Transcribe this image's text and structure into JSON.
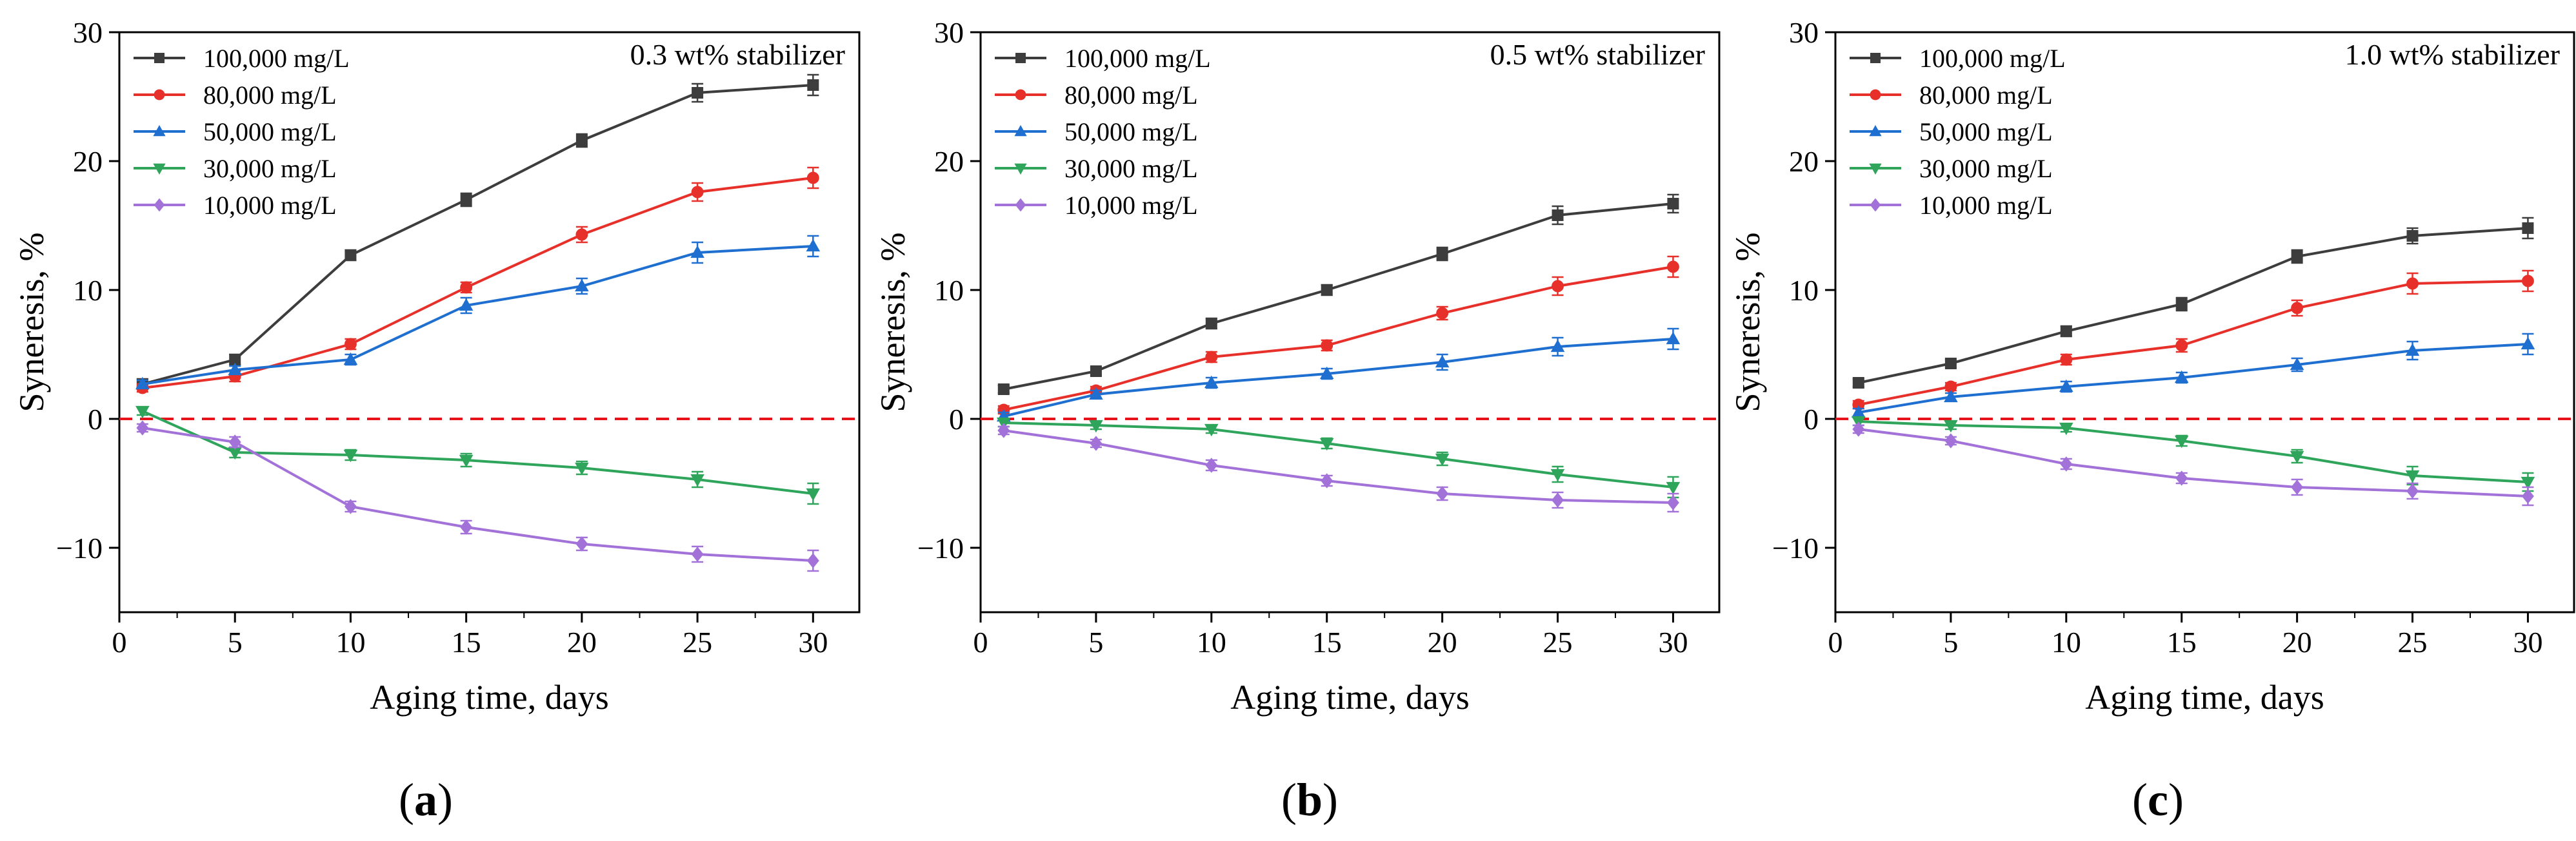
{
  "chart_data": [
    {
      "type": "line",
      "panel_label": "a",
      "annotation": "0.3 wt% stabilizer",
      "xlabel": "Aging time, days",
      "ylabel": "Syneresis, %",
      "xlim": [
        0,
        32
      ],
      "ylim": [
        -15,
        30
      ],
      "xticks": [
        0,
        5,
        10,
        15,
        20,
        25,
        30
      ],
      "yticks": [
        -10,
        0,
        10,
        20,
        30
      ],
      "reference_line_y": 0,
      "x": [
        1,
        5,
        10,
        15,
        20,
        25,
        30
      ],
      "series": [
        {
          "name": "100,000 mg/L",
          "color": "#3d3d3d",
          "marker": "square",
          "values": [
            2.7,
            4.6,
            12.7,
            17.0,
            21.6,
            25.3,
            25.9
          ],
          "errors": [
            0.4,
            0.4,
            0.4,
            0.5,
            0.5,
            0.7,
            0.8
          ]
        },
        {
          "name": "80,000 mg/L",
          "color": "#e8302b",
          "marker": "circle",
          "values": [
            2.4,
            3.3,
            5.8,
            10.2,
            14.3,
            17.6,
            18.7
          ],
          "errors": [
            0.3,
            0.4,
            0.4,
            0.4,
            0.6,
            0.7,
            0.8
          ]
        },
        {
          "name": "50,000 mg/L",
          "color": "#1f6fd1",
          "marker": "triangle-up",
          "values": [
            2.7,
            3.8,
            4.6,
            8.8,
            10.3,
            12.9,
            13.4
          ],
          "errors": [
            0.3,
            0.3,
            0.4,
            0.6,
            0.6,
            0.8,
            0.8
          ]
        },
        {
          "name": "30,000 mg/L",
          "color": "#2ea55b",
          "marker": "triangle-down",
          "values": [
            0.6,
            -2.6,
            -2.8,
            -3.2,
            -3.8,
            -4.7,
            -5.8
          ],
          "errors": [
            0.3,
            0.4,
            0.4,
            0.5,
            0.5,
            0.6,
            0.8
          ]
        },
        {
          "name": "10,000 mg/L",
          "color": "#a272d9",
          "marker": "diamond",
          "values": [
            -0.7,
            -1.8,
            -6.8,
            -8.4,
            -9.7,
            -10.5,
            -11.0
          ],
          "errors": [
            0.3,
            0.4,
            0.4,
            0.5,
            0.5,
            0.6,
            0.8
          ]
        }
      ]
    },
    {
      "type": "line",
      "panel_label": "b",
      "annotation": "0.5 wt% stabilizer",
      "xlabel": "Aging time, days",
      "ylabel": "Syneresis, %",
      "xlim": [
        0,
        32
      ],
      "ylim": [
        -15,
        30
      ],
      "xticks": [
        0,
        5,
        10,
        15,
        20,
        25,
        30
      ],
      "yticks": [
        -10,
        0,
        10,
        20,
        30
      ],
      "reference_line_y": 0,
      "x": [
        1,
        5,
        10,
        15,
        20,
        25,
        30
      ],
      "series": [
        {
          "name": "100,000 mg/L",
          "color": "#3d3d3d",
          "marker": "square",
          "values": [
            2.3,
            3.7,
            7.4,
            10.0,
            12.8,
            15.8,
            16.7
          ],
          "errors": [
            0.3,
            0.3,
            0.4,
            0.4,
            0.5,
            0.7,
            0.7
          ]
        },
        {
          "name": "80,000 mg/L",
          "color": "#e8302b",
          "marker": "circle",
          "values": [
            0.7,
            2.2,
            4.8,
            5.7,
            8.2,
            10.3,
            11.8
          ],
          "errors": [
            0.3,
            0.3,
            0.4,
            0.4,
            0.5,
            0.7,
            0.8
          ]
        },
        {
          "name": "50,000 mg/L",
          "color": "#1f6fd1",
          "marker": "triangle-up",
          "values": [
            0.2,
            1.9,
            2.8,
            3.5,
            4.4,
            5.6,
            6.2
          ],
          "errors": [
            0.3,
            0.3,
            0.4,
            0.4,
            0.6,
            0.7,
            0.8
          ]
        },
        {
          "name": "30,000 mg/L",
          "color": "#2ea55b",
          "marker": "triangle-down",
          "values": [
            -0.3,
            -0.5,
            -0.8,
            -1.9,
            -3.1,
            -4.3,
            -5.3
          ],
          "errors": [
            0.3,
            0.3,
            0.3,
            0.4,
            0.5,
            0.6,
            0.8
          ]
        },
        {
          "name": "10,000 mg/L",
          "color": "#a272d9",
          "marker": "diamond",
          "values": [
            -0.9,
            -1.9,
            -3.6,
            -4.8,
            -5.8,
            -6.3,
            -6.5
          ],
          "errors": [
            0.3,
            0.3,
            0.4,
            0.4,
            0.5,
            0.6,
            0.7
          ]
        }
      ]
    },
    {
      "type": "line",
      "panel_label": "c",
      "annotation": "1.0 wt% stabilizer",
      "xlabel": "Aging time, days",
      "ylabel": "Syneresis, %",
      "xlim": [
        0,
        32
      ],
      "ylim": [
        -15,
        30
      ],
      "xticks": [
        0,
        5,
        10,
        15,
        20,
        25,
        30
      ],
      "yticks": [
        -10,
        0,
        10,
        20,
        30
      ],
      "reference_line_y": 0,
      "x": [
        1,
        5,
        10,
        15,
        20,
        25,
        30
      ],
      "series": [
        {
          "name": "100,000 mg/L",
          "color": "#3d3d3d",
          "marker": "square",
          "values": [
            2.8,
            4.3,
            6.8,
            8.9,
            12.6,
            14.2,
            14.8
          ],
          "errors": [
            0.3,
            0.3,
            0.4,
            0.5,
            0.5,
            0.6,
            0.8
          ]
        },
        {
          "name": "80,000 mg/L",
          "color": "#e8302b",
          "marker": "circle",
          "values": [
            1.1,
            2.5,
            4.6,
            5.7,
            8.6,
            10.5,
            10.7
          ],
          "errors": [
            0.3,
            0.3,
            0.4,
            0.5,
            0.6,
            0.8,
            0.8
          ]
        },
        {
          "name": "50,000 mg/L",
          "color": "#1f6fd1",
          "marker": "triangle-up",
          "values": [
            0.5,
            1.7,
            2.5,
            3.2,
            4.2,
            5.3,
            5.8
          ],
          "errors": [
            0.3,
            0.3,
            0.4,
            0.4,
            0.5,
            0.7,
            0.8
          ]
        },
        {
          "name": "30,000 mg/L",
          "color": "#2ea55b",
          "marker": "triangle-down",
          "values": [
            -0.2,
            -0.5,
            -0.7,
            -1.7,
            -2.9,
            -4.4,
            -4.9
          ],
          "errors": [
            0.3,
            0.3,
            0.3,
            0.4,
            0.5,
            0.7,
            0.7
          ]
        },
        {
          "name": "10,000 mg/L",
          "color": "#a272d9",
          "marker": "diamond",
          "values": [
            -0.8,
            -1.7,
            -3.5,
            -4.6,
            -5.3,
            -5.6,
            -6.0
          ],
          "errors": [
            0.3,
            0.3,
            0.4,
            0.4,
            0.6,
            0.6,
            0.7
          ]
        }
      ]
    }
  ]
}
